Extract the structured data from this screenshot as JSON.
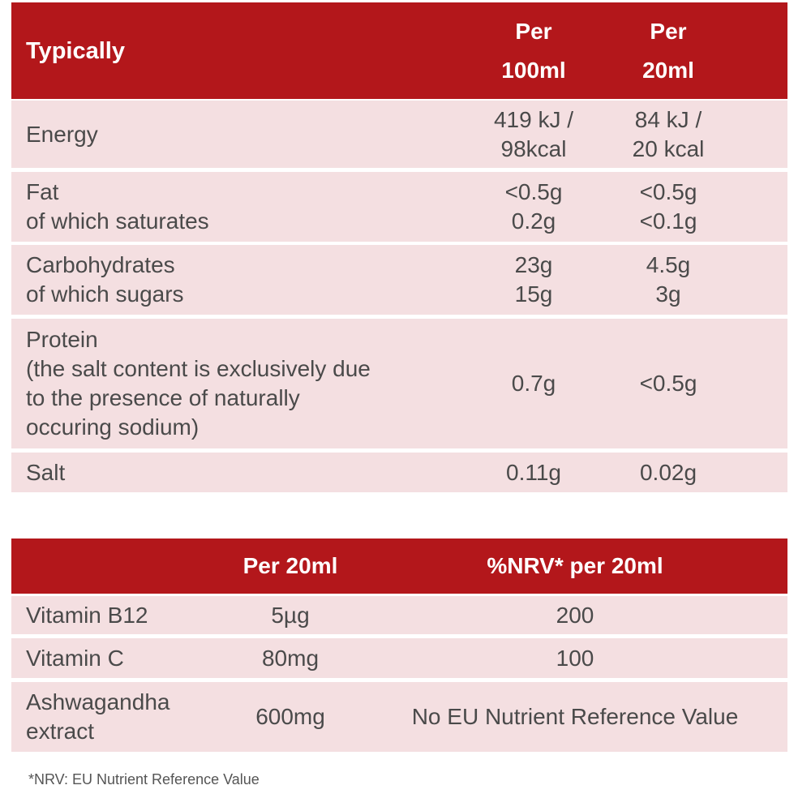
{
  "nutrition": {
    "header": {
      "label": "Typically",
      "col1": [
        "Per",
        "100ml"
      ],
      "col2": [
        "Per",
        "20ml"
      ]
    },
    "rows": [
      {
        "label": [
          "Energy"
        ],
        "v1": [
          "419 kJ /",
          "98kcal"
        ],
        "v2": [
          "84 kJ /",
          "20 kcal"
        ]
      },
      {
        "label": [
          "Fat",
          "of which saturates"
        ],
        "v1": [
          "<0.5g",
          "0.2g"
        ],
        "v2": [
          "<0.5g",
          "<0.1g"
        ]
      },
      {
        "label": [
          "Carbohydrates",
          "of which sugars"
        ],
        "v1": [
          "23g",
          "15g"
        ],
        "v2": [
          "4.5g",
          "3g"
        ]
      },
      {
        "label": [
          "Protein",
          "(the salt content is exclusively due",
          "to the presence of naturally",
          "occuring sodium)"
        ],
        "v1": [
          "0.7g"
        ],
        "v2": [
          "<0.5g"
        ]
      },
      {
        "label": [
          "Salt"
        ],
        "v1": [
          "0.11g"
        ],
        "v2": [
          "0.02g"
        ]
      }
    ]
  },
  "vitamins": {
    "header": {
      "label": "",
      "col1": "Per 20ml",
      "col2": "%NRV* per 20ml"
    },
    "rows": [
      {
        "label": [
          "Vitamin B12"
        ],
        "v1": "5µg",
        "v2": "200"
      },
      {
        "label": [
          "Vitamin C"
        ],
        "v1": "80mg",
        "v2": "100"
      },
      {
        "label": [
          "Ashwagandha",
          "extract"
        ],
        "v1": "600mg",
        "v2": "No EU Nutrient Reference Value"
      }
    ]
  },
  "footnote": "*NRV: EU Nutrient Reference Value",
  "colors": {
    "header": "#b3171b",
    "row": "#f4dfe1"
  }
}
